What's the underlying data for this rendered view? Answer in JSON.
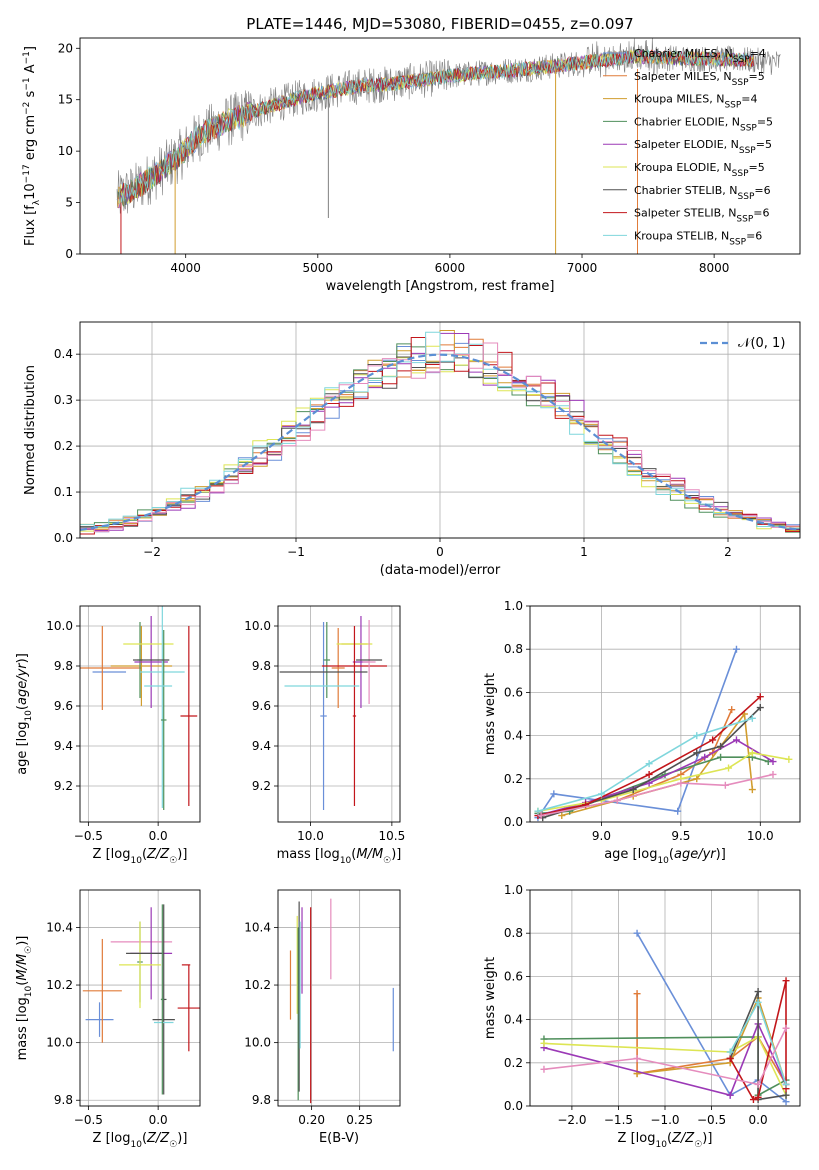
{
  "figure": {
    "title": "PLATE=1446, MJD=53080, FIBERID=0455, z=0.097"
  },
  "colors": {
    "ChabrierMILES": "#6a8fd8",
    "SalpeterMILES": "#e07b39",
    "KroupaMILES": "#d19d2e",
    "ChabrierELODIE": "#4f8f5b",
    "SalpeterELODIE": "#9b39b6",
    "KroupaELODIE": "#dde554",
    "ChabrierSTELIB": "#505050",
    "SalpeterSTELIB": "#c2161b",
    "KroupaSTELIB": "#7fd6dc",
    "pink": "#e58cbd"
  },
  "chart_data": [
    {
      "id": "spectrum",
      "type": "line",
      "xlabel": "wavelength [Angstrom, rest frame]",
      "ylabel": "Flux [f_λ10^-17 erg cm^-2 s^-1 A^-1]",
      "xlim": [
        3200,
        8650
      ],
      "ylim": [
        0,
        21
      ],
      "xticks": [
        4000,
        5000,
        6000,
        7000,
        8000
      ],
      "yticks": [
        0,
        5,
        10,
        15,
        20
      ],
      "legend_position": "top-right",
      "legend": [
        {
          "label": "Chabrier MILES, N",
          "sub": "SSP",
          "tail": "=4",
          "color": "#6a8fd8"
        },
        {
          "label": "Salpeter MILES, N",
          "sub": "SSP",
          "tail": "=5",
          "color": "#e07b39"
        },
        {
          "label": "Kroupa MILES, N",
          "sub": "SSP",
          "tail": "=4",
          "color": "#d19d2e"
        },
        {
          "label": "Chabrier ELODIE, N",
          "sub": "SSP",
          "tail": "=5",
          "color": "#4f8f5b"
        },
        {
          "label": "Salpeter ELODIE, N",
          "sub": "SSP",
          "tail": "=5",
          "color": "#9b39b6"
        },
        {
          "label": "Kroupa ELODIE, N",
          "sub": "SSP",
          "tail": "=5",
          "color": "#dde554"
        },
        {
          "label": "Chabrier STELIB, N",
          "sub": "SSP",
          "tail": "=6",
          "color": "#505050"
        },
        {
          "label": "Salpeter STELIB, N",
          "sub": "SSP",
          "tail": "=6",
          "color": "#c2161b"
        },
        {
          "label": "Kroupa STELIB, N",
          "sub": "SSP",
          "tail": "=6",
          "color": "#7fd6dc"
        }
      ],
      "continuum": {
        "x": [
          3480,
          3600,
          3800,
          3950,
          4100,
          4300,
          4500,
          4800,
          5000,
          5300,
          5600,
          6000,
          6300,
          6600,
          7000,
          7400,
          7800,
          8200,
          8500
        ],
        "y": [
          5.5,
          6.2,
          8.0,
          9.5,
          11.5,
          12.8,
          13.8,
          15.0,
          15.6,
          16.3,
          16.6,
          17.3,
          17.7,
          18.0,
          18.6,
          19.2,
          19.0,
          18.9,
          18.6
        ]
      },
      "spikes": [
        {
          "x": 3510,
          "y0": 0,
          "y1": 5,
          "color": "#c2161b"
        },
        {
          "x": 3920,
          "y0": 0,
          "y1": 9,
          "color": "#d19d2e"
        },
        {
          "x": 5080,
          "y0": 3.5,
          "y1": 16,
          "color": "#808080"
        },
        {
          "x": 6800,
          "y0": 0,
          "y1": 18,
          "color": "#d19d2e"
        },
        {
          "x": 7420,
          "y0": 0,
          "y1": 18,
          "color": "#e07b39"
        }
      ]
    },
    {
      "id": "residuals",
      "type": "histogram",
      "xlabel": "(data-model)/error",
      "ylabel": "Normed distribution",
      "xlim": [
        -2.5,
        2.5
      ],
      "ylim": [
        0,
        0.47
      ],
      "xticks": [
        -2,
        -1,
        0,
        1,
        2
      ],
      "yticks": [
        0.0,
        0.1,
        0.2,
        0.3,
        0.4
      ],
      "legend_position": "top-right",
      "legend": [
        {
          "label": "𝒩(0, 1)",
          "color": "#5b8fd4"
        }
      ],
      "bin_width": 0.1,
      "reference": "normal(0,1)"
    },
    {
      "id": "age-vs-Z",
      "type": "errorbar",
      "xlabel": "Z [log10(Z/Z☉)]",
      "ylabel": "age [log10(age/yr)]",
      "xlim": [
        -0.56,
        0.3
      ],
      "ylim": [
        9.02,
        10.1
      ],
      "xticks": [
        -0.5,
        0.0
      ],
      "yticks": [
        9.2,
        9.4,
        9.6,
        9.8,
        10.0
      ],
      "points": [
        {
          "x": -0.35,
          "xerr": 0.12,
          "y": 9.77,
          "yerr": 0.0,
          "color": "#6a8fd8"
        },
        {
          "x": -0.4,
          "xerr": 0.28,
          "y": 9.79,
          "yerr": 0.21,
          "color": "#e07b39"
        },
        {
          "x": -0.12,
          "xerr": 0.22,
          "y": 9.8,
          "yerr": 0.2,
          "color": "#d19d2e"
        },
        {
          "x": -0.13,
          "xerr": 0.02,
          "y": 9.83,
          "yerr": 0.19,
          "color": "#4f8f5b"
        },
        {
          "x": -0.05,
          "xerr": 0.12,
          "y": 9.82,
          "yerr": 0.23,
          "color": "#9b39b6"
        },
        {
          "x": -0.07,
          "xerr": 0.18,
          "y": 9.91,
          "yerr": 0.0,
          "color": "#dde554"
        },
        {
          "x": 0.03,
          "xerr": 0.16,
          "y": 9.77,
          "yerr": 0.68,
          "color": "#7fd6dc"
        },
        {
          "x": 0.04,
          "xerr": 0.02,
          "y": 9.53,
          "yerr": 0.45,
          "color": "#4f8f5b"
        },
        {
          "x": -0.05,
          "xerr": 0.13,
          "y": 9.83,
          "yerr": 0.0,
          "color": "#505050"
        },
        {
          "x": 0.22,
          "xerr": 0.06,
          "y": 9.55,
          "yerr": 0.45,
          "color": "#c2161b"
        },
        {
          "x": 0.0,
          "xerr": 0.1,
          "y": 9.7,
          "yerr": 0.0,
          "color": "#7fd6dc"
        }
      ]
    },
    {
      "id": "age-vs-mass",
      "type": "errorbar",
      "xlabel": "mass [log10(M/M☉)]",
      "ylabel": "",
      "xlim": [
        9.8,
        10.55
      ],
      "ylim": [
        9.02,
        10.1
      ],
      "xticks": [
        10.0,
        10.5
      ],
      "yticks": [
        9.2,
        9.4,
        9.6,
        9.8,
        10.0
      ],
      "points": [
        {
          "x": 10.08,
          "xerr": 0.02,
          "y": 9.55,
          "yerr": 0.47,
          "color": "#6a8fd8"
        },
        {
          "x": 10.17,
          "xerr": 0.04,
          "y": 9.79,
          "yerr": 0.2,
          "color": "#e07b39"
        },
        {
          "x": 10.27,
          "xerr": 0.08,
          "y": 9.91,
          "yerr": 0.0,
          "color": "#d19d2e"
        },
        {
          "x": 10.1,
          "xerr": 0.02,
          "y": 9.83,
          "yerr": 0.19,
          "color": "#4f8f5b"
        },
        {
          "x": 10.31,
          "xerr": 0.05,
          "y": 9.82,
          "yerr": 0.23,
          "color": "#9b39b6"
        },
        {
          "x": 10.27,
          "xerr": 0.11,
          "y": 9.91,
          "yerr": 0.0,
          "color": "#dde554"
        },
        {
          "x": 10.08,
          "xerr": 0.27,
          "y": 9.77,
          "yerr": 0.0,
          "color": "#505050"
        },
        {
          "x": 10.27,
          "xerr": 0.2,
          "y": 9.8,
          "yerr": 0.0,
          "color": "#c2161b"
        },
        {
          "x": 10.27,
          "xerr": 0.01,
          "y": 9.55,
          "yerr": 0.45,
          "color": "#c2161b"
        },
        {
          "x": 10.36,
          "xerr": 0.04,
          "y": 9.82,
          "yerr": 0.21,
          "color": "#e58cbd"
        },
        {
          "x": 10.07,
          "xerr": 0.23,
          "y": 9.7,
          "yerr": 0.0,
          "color": "#7fd6dc"
        },
        {
          "x": 10.36,
          "xerr": 0.08,
          "y": 9.83,
          "yerr": 0.0,
          "color": "#505050"
        }
      ]
    },
    {
      "id": "massweight-vs-age",
      "type": "line",
      "xlabel": "age [log10(age/yr)]",
      "ylabel": "mass weight",
      "xlim": [
        8.55,
        10.25
      ],
      "ylim": [
        0,
        1.0
      ],
      "xticks": [
        9.0,
        9.5,
        10.0
      ],
      "yticks": [
        0.0,
        0.2,
        0.4,
        0.6,
        0.8,
        1.0
      ],
      "series": [
        {
          "color": "#6a8fd8",
          "x": [
            8.6,
            8.7,
            9.48,
            9.85
          ],
          "y": [
            0.02,
            0.13,
            0.05,
            0.8
          ]
        },
        {
          "color": "#e07b39",
          "x": [
            8.62,
            9.1,
            9.5,
            9.7,
            9.82
          ],
          "y": [
            0.03,
            0.1,
            0.22,
            0.32,
            0.52
          ]
        },
        {
          "color": "#d19d2e",
          "x": [
            8.75,
            9.2,
            9.6,
            9.9,
            9.95
          ],
          "y": [
            0.03,
            0.12,
            0.2,
            0.5,
            0.15
          ]
        },
        {
          "color": "#4f8f5b",
          "x": [
            8.6,
            8.8,
            9.4,
            9.75,
            9.95,
            10.05
          ],
          "y": [
            0.04,
            0.05,
            0.22,
            0.3,
            0.3,
            0.28
          ]
        },
        {
          "color": "#9b39b6",
          "x": [
            8.6,
            8.9,
            9.3,
            9.65,
            9.85,
            10.08
          ],
          "y": [
            0.03,
            0.09,
            0.18,
            0.3,
            0.38,
            0.28
          ]
        },
        {
          "color": "#dde554",
          "x": [
            8.6,
            9.0,
            9.5,
            9.8,
            9.95,
            10.18
          ],
          "y": [
            0.05,
            0.1,
            0.2,
            0.25,
            0.32,
            0.29
          ]
        },
        {
          "color": "#505050",
          "x": [
            8.63,
            9.2,
            9.6,
            9.75,
            10.0
          ],
          "y": [
            0.02,
            0.15,
            0.32,
            0.35,
            0.53
          ]
        },
        {
          "color": "#c2161b",
          "x": [
            8.6,
            8.9,
            9.3,
            9.7,
            10.0
          ],
          "y": [
            0.03,
            0.08,
            0.22,
            0.38,
            0.58
          ]
        },
        {
          "color": "#7fd6dc",
          "x": [
            8.6,
            9.0,
            9.3,
            9.6,
            9.95
          ],
          "y": [
            0.05,
            0.13,
            0.27,
            0.4,
            0.48
          ]
        },
        {
          "color": "#e58cbd",
          "x": [
            8.62,
            9.1,
            9.5,
            9.78,
            10.08
          ],
          "y": [
            0.03,
            0.1,
            0.18,
            0.17,
            0.22
          ]
        }
      ]
    },
    {
      "id": "mass-vs-Z",
      "type": "errorbar",
      "xlabel": "Z [log10(Z/Z☉)]",
      "ylabel": "mass [log10(M/M☉)]",
      "xlim": [
        -0.56,
        0.3
      ],
      "ylim": [
        9.78,
        10.53
      ],
      "xticks": [
        -0.5,
        0.0
      ],
      "yticks": [
        9.8,
        10.0,
        10.2,
        10.4
      ],
      "points": [
        {
          "x": -0.42,
          "xerr": 0.1,
          "y": 10.08,
          "yerr": 0.06,
          "color": "#6a8fd8"
        },
        {
          "x": -0.4,
          "xerr": 0.14,
          "y": 10.18,
          "yerr": 0.18,
          "color": "#e07b39"
        },
        {
          "x": -0.12,
          "xerr": 0.22,
          "y": 10.35,
          "yerr": 0.0,
          "color": "#e58cbd"
        },
        {
          "x": -0.13,
          "xerr": 0.02,
          "y": 10.28,
          "yerr": 0.14,
          "color": "#4f8f5b"
        },
        {
          "x": -0.05,
          "xerr": 0.15,
          "y": 10.31,
          "yerr": 0.16,
          "color": "#9b39b6"
        },
        {
          "x": -0.13,
          "xerr": 0.15,
          "y": 10.27,
          "yerr": 0.15,
          "color": "#dde554"
        },
        {
          "x": -0.1,
          "xerr": 0.13,
          "y": 10.31,
          "yerr": 0.0,
          "color": "#505050"
        },
        {
          "x": 0.04,
          "xerr": 0.02,
          "y": 10.15,
          "yerr": 0.33,
          "color": "#505050"
        },
        {
          "x": 0.04,
          "xerr": 0.08,
          "y": 10.08,
          "yerr": 0.0,
          "color": "#505050"
        },
        {
          "x": 0.22,
          "xerr": 0.08,
          "y": 10.12,
          "yerr": 0.15,
          "color": "#c2161b"
        },
        {
          "x": 0.2,
          "xerr": 0.03,
          "y": 10.27,
          "yerr": 0.0,
          "color": "#c2161b"
        },
        {
          "x": 0.04,
          "xerr": 0.07,
          "y": 10.07,
          "yerr": 0.0,
          "color": "#7fd6dc"
        },
        {
          "x": 0.03,
          "xerr": 0.01,
          "y": 10.15,
          "yerr": 0.33,
          "color": "#4f8f5b"
        }
      ]
    },
    {
      "id": "mass-vs-EBV",
      "type": "errorbar",
      "xlabel": "E(B-V)",
      "ylabel": "",
      "xlim": [
        0.165,
        0.292
      ],
      "ylim": [
        9.78,
        10.53
      ],
      "xticks": [
        0.2,
        0.25
      ],
      "yticks": [
        9.8,
        10.0,
        10.2,
        10.4
      ],
      "points": [
        {
          "x": 0.178,
          "xerr": 0.0,
          "y": 10.2,
          "yerr": 0.12,
          "color": "#e07b39"
        },
        {
          "x": 0.185,
          "xerr": 0.0,
          "y": 10.27,
          "yerr": 0.17,
          "color": "#dde554"
        },
        {
          "x": 0.186,
          "xerr": 0.0,
          "y": 10.1,
          "yerr": 0.3,
          "color": "#4f8f5b"
        },
        {
          "x": 0.187,
          "xerr": 0.0,
          "y": 10.16,
          "yerr": 0.33,
          "color": "#505050"
        },
        {
          "x": 0.188,
          "xerr": 0.0,
          "y": 10.2,
          "yerr": 0.22,
          "color": "#7fd6dc"
        },
        {
          "x": 0.19,
          "xerr": 0.0,
          "y": 10.32,
          "yerr": 0.15,
          "color": "#9b39b6"
        },
        {
          "x": 0.199,
          "xerr": 0.0,
          "y": 10.13,
          "yerr": 0.34,
          "color": "#c2161b"
        },
        {
          "x": 0.22,
          "xerr": 0.0,
          "y": 10.36,
          "yerr": 0.14,
          "color": "#e58cbd"
        },
        {
          "x": 0.285,
          "xerr": 0.0,
          "y": 10.08,
          "yerr": 0.11,
          "color": "#6a8fd8"
        }
      ]
    },
    {
      "id": "massweight-vs-Z",
      "type": "line",
      "xlabel": "Z [log10(Z/Z☉)]",
      "ylabel": "mass weight",
      "xlim": [
        -2.45,
        0.45
      ],
      "ylim": [
        0,
        1.0
      ],
      "xticks": [
        -2.0,
        -1.5,
        -1.0,
        -0.5,
        0.0
      ],
      "yticks": [
        0.0,
        0.2,
        0.4,
        0.6,
        0.8,
        1.0
      ],
      "series": [
        {
          "color": "#6a8fd8",
          "x": [
            -1.3,
            -0.3,
            0.0,
            0.3
          ],
          "y": [
            0.8,
            0.05,
            0.12,
            0.02
          ]
        },
        {
          "color": "#e07b39",
          "x": [
            -1.3,
            -1.3,
            -0.3,
            0.0,
            0.3
          ],
          "y": [
            0.52,
            0.15,
            0.22,
            0.32,
            0.1
          ]
        },
        {
          "color": "#d19d2e",
          "x": [
            -1.3,
            -0.3,
            0.0,
            0.3
          ],
          "y": [
            0.15,
            0.2,
            0.5,
            0.1
          ]
        },
        {
          "color": "#4f8f5b",
          "x": [
            -2.3,
            0.0,
            0.0,
            0.3
          ],
          "y": [
            0.31,
            0.32,
            0.05,
            0.12
          ]
        },
        {
          "color": "#9b39b6",
          "x": [
            -2.3,
            -0.3,
            0.0,
            0.3
          ],
          "y": [
            0.27,
            0.05,
            0.38,
            0.1
          ]
        },
        {
          "color": "#dde554",
          "x": [
            -2.3,
            -0.3,
            0.0,
            0.3
          ],
          "y": [
            0.29,
            0.25,
            0.32,
            0.05
          ]
        },
        {
          "color": "#505050",
          "x": [
            -0.3,
            0.0,
            0.0,
            0.3
          ],
          "y": [
            0.22,
            0.53,
            0.03,
            0.05
          ]
        },
        {
          "color": "#c2161b",
          "x": [
            -0.3,
            -0.05,
            0.0,
            0.3,
            0.3
          ],
          "y": [
            0.22,
            0.03,
            0.04,
            0.58,
            0.08
          ]
        },
        {
          "color": "#7fd6dc",
          "x": [
            -0.3,
            0.0,
            0.3
          ],
          "y": [
            0.25,
            0.48,
            0.1
          ]
        },
        {
          "color": "#e58cbd",
          "x": [
            -2.3,
            -1.3,
            0.0,
            0.3
          ],
          "y": [
            0.17,
            0.22,
            0.1,
            0.36
          ]
        }
      ]
    }
  ]
}
